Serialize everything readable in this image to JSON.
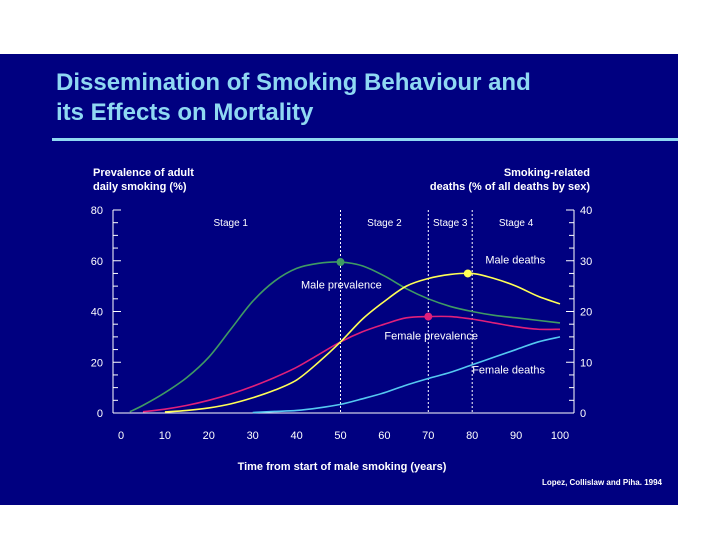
{
  "slide": {
    "title_line1": "Dissemination of Smoking Behaviour and",
    "title_line2": "its Effects on Mortality",
    "background": "#000080",
    "title_color": "#8fd8f2",
    "source": "Lopez, Collislaw and Piha. 1994"
  },
  "chart_data": {
    "type": "line",
    "xlabel": "Time from start of male smoking (years)",
    "ylabel_left_line1": "Prevalence of adult",
    "ylabel_left_line2": "daily smoking (%)",
    "ylabel_right_line1": "Smoking-related",
    "ylabel_right_line2": "deaths (% of all deaths by sex)",
    "xlim": [
      0,
      100
    ],
    "ylim_left": [
      0,
      80
    ],
    "ylim_right": [
      0,
      40
    ],
    "x_ticks": [
      "0",
      "10",
      "20",
      "30",
      "40",
      "50",
      "60",
      "70",
      "80",
      "90",
      "100"
    ],
    "y_left_ticks": [
      "0",
      "20",
      "40",
      "60",
      "80"
    ],
    "y_right_ticks": [
      "0",
      "10",
      "20",
      "30",
      "40"
    ],
    "stages": [
      {
        "label": "Stage 1",
        "x_start": 0,
        "x_end": 50
      },
      {
        "label": "Stage 2",
        "x_start": 50,
        "x_end": 70
      },
      {
        "label": "Stage 3",
        "x_start": 70,
        "x_end": 80
      },
      {
        "label": "Stage 4",
        "x_start": 80,
        "x_end": 100
      }
    ],
    "series": [
      {
        "name": "Male prevalence",
        "axis": "left",
        "color": "#3f9a63",
        "x": [
          2,
          5,
          10,
          15,
          20,
          25,
          30,
          35,
          40,
          45,
          50,
          55,
          60,
          65,
          70,
          75,
          80,
          85,
          90,
          95,
          100
        ],
        "y": [
          0.5,
          3,
          8,
          14,
          22,
          33,
          44,
          52,
          57,
          59,
          59.5,
          58,
          54,
          49,
          45,
          42,
          40,
          38.5,
          37.5,
          36.5,
          35.5
        ],
        "marker": {
          "x": 50,
          "y": 59.5
        }
      },
      {
        "name": "Female prevalence",
        "axis": "left",
        "color": "#e0207a",
        "x": [
          5,
          10,
          15,
          20,
          25,
          30,
          35,
          40,
          45,
          50,
          55,
          60,
          65,
          70,
          75,
          80,
          85,
          90,
          95,
          100
        ],
        "y": [
          0.5,
          1.5,
          3,
          5,
          7.5,
          10.5,
          14,
          18,
          23,
          28,
          32,
          35,
          37.5,
          38,
          38,
          37,
          35.5,
          34,
          33,
          33
        ],
        "marker": {
          "x": 70,
          "y": 38
        }
      },
      {
        "name": "Male deaths",
        "axis": "right",
        "color": "#ffff55",
        "x": [
          10,
          15,
          20,
          25,
          30,
          35,
          40,
          45,
          50,
          55,
          60,
          65,
          70,
          75,
          80,
          85,
          90,
          95,
          100
        ],
        "y": [
          0.2,
          0.5,
          1,
          1.8,
          3,
          4.5,
          6.5,
          10,
          14,
          18.5,
          22,
          25,
          26.5,
          27.3,
          27.5,
          26.5,
          25,
          23,
          21.5
        ],
        "marker": {
          "x": 79,
          "y": 27.5
        }
      },
      {
        "name": "Female deaths",
        "axis": "right",
        "color": "#55c8f0",
        "x": [
          30,
          35,
          40,
          45,
          50,
          55,
          60,
          65,
          70,
          75,
          80,
          85,
          90,
          95,
          100
        ],
        "y": [
          0.1,
          0.3,
          0.5,
          1,
          1.7,
          2.8,
          4,
          5.5,
          6.8,
          8,
          9.5,
          11,
          12.5,
          14,
          15
        ]
      }
    ],
    "annotations": [
      {
        "text": "Male prevalence",
        "x": 41,
        "y": 49,
        "axis": "left"
      },
      {
        "text": "Female prevalence",
        "x": 60,
        "y": 29,
        "axis": "left"
      },
      {
        "text": "Male deaths",
        "x": 83,
        "y": 29.5,
        "axis": "right"
      },
      {
        "text": "Female deaths",
        "x": 80,
        "y": 7.8,
        "axis": "right"
      }
    ]
  }
}
